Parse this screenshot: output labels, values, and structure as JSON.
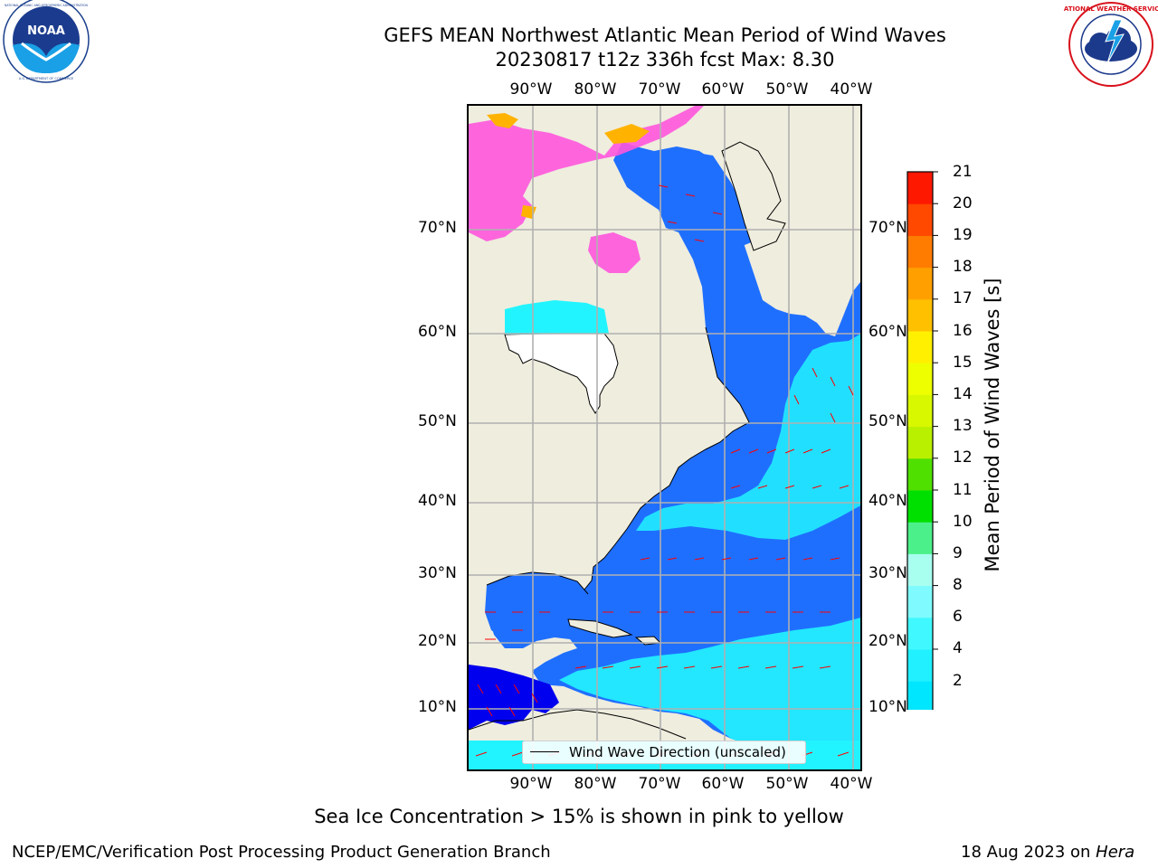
{
  "header": {
    "title_line1": "GEFS MEAN Northwest Atlantic Mean Period of Wind Waves",
    "title_line2": "20230817 t12z 336h fcst   Max: 8.30"
  },
  "logos": {
    "noaa_text": "NOAA",
    "noaa_ring_text": "NATIONAL OCEANIC AND ATMOSPHERIC ADMINISTRATION",
    "noaa_ring_bottom": "U.S. DEPARTMENT OF COMMERCE",
    "nws_ring_text": "NATIONAL WEATHER SERVICE"
  },
  "map": {
    "lon_labels": [
      "90°W",
      "80°W",
      "70°W",
      "60°W",
      "50°W",
      "40°W"
    ],
    "lat_labels": [
      "70°N",
      "60°N",
      "50°N",
      "40°N",
      "30°N",
      "20°N",
      "10°N"
    ],
    "legend_label": "Wind Wave Direction (unscaled)",
    "colors": {
      "land": "#efedde",
      "ocean_low": "#1f6fff",
      "ocean_very_low": "#0000ee",
      "ocean_mid": "#22f4ff",
      "arrow": "#ff0000",
      "ice": "#ff55dd",
      "ice_high": "#ffb300",
      "grid": "#b0b0b0"
    }
  },
  "colorbar": {
    "title": "Mean Period of Wind Waves [s]",
    "tick_labels": [
      "2",
      "4",
      "6",
      "8",
      "9",
      "10",
      "11",
      "12",
      "13",
      "14",
      "15",
      "16",
      "17",
      "18",
      "19",
      "20",
      "21"
    ],
    "bands": [
      {
        "from": 2,
        "to": 3,
        "color": "#0a74ff"
      },
      {
        "from": 3,
        "to": 4,
        "color": "#1e8cff"
      },
      {
        "from": 4,
        "to": 5,
        "color": "#00e6ff"
      },
      {
        "from": 5,
        "to": 6,
        "color": "#20f0ff"
      },
      {
        "from": 6,
        "to": 7,
        "color": "#40f8ff"
      },
      {
        "from": 7,
        "to": 8,
        "color": "#7ffbff"
      },
      {
        "from": 8,
        "to": 9,
        "color": "#a8fff0"
      },
      {
        "from": 9,
        "to": 10,
        "color": "#4cf08a"
      },
      {
        "from": 10,
        "to": 11,
        "color": "#00e000"
      },
      {
        "from": 11,
        "to": 12,
        "color": "#50e000"
      },
      {
        "from": 12,
        "to": 13,
        "color": "#b8f000"
      },
      {
        "from": 13,
        "to": 14,
        "color": "#d8f800"
      },
      {
        "from": 14,
        "to": 15,
        "color": "#eeff00"
      },
      {
        "from": 15,
        "to": 16,
        "color": "#fff000"
      },
      {
        "from": 16,
        "to": 17,
        "color": "#ffc000"
      },
      {
        "from": 17,
        "to": 18,
        "color": "#ffa000"
      },
      {
        "from": 18,
        "to": 19,
        "color": "#ff7c00"
      },
      {
        "from": 19,
        "to": 20,
        "color": "#ff4800"
      },
      {
        "from": 20,
        "to": 21,
        "color": "#ff1800"
      }
    ],
    "extend_color": "#0000e6"
  },
  "notes": {
    "ice_note": "Sea Ice Concentration > 15% is shown in pink to yellow",
    "footer_left": "NCEP/EMC/Verification Post Processing Product Generation Branch",
    "footer_date": "18 Aug 2023 on ",
    "footer_host": "Hera"
  }
}
